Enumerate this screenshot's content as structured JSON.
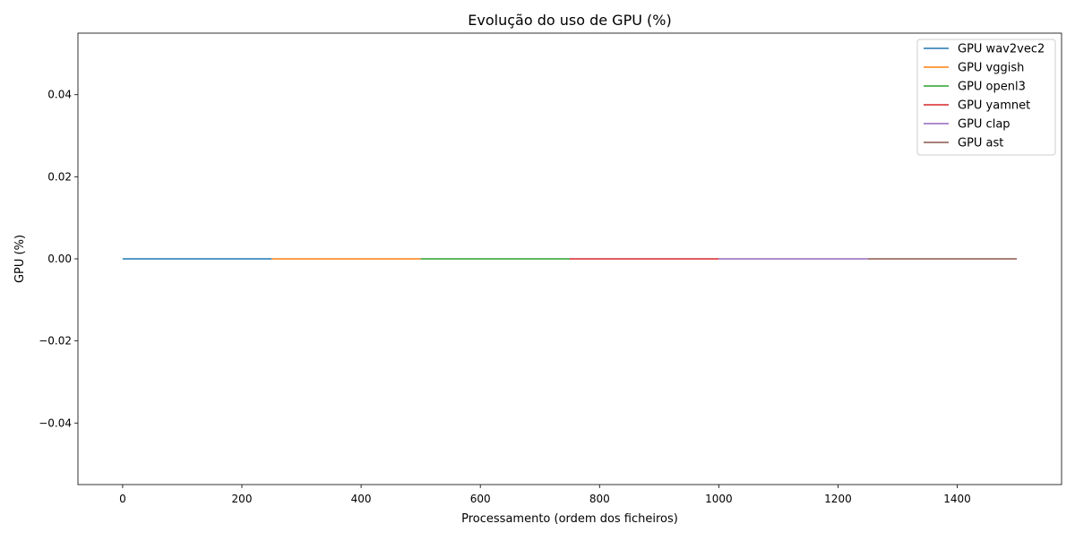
{
  "chart_data": {
    "type": "line",
    "title": "Evolução do uso de GPU (%)",
    "xlabel": "Processamento (ordem dos ficheiros)",
    "ylabel": "GPU (%)",
    "xlim": [
      -75,
      1575
    ],
    "ylim": [
      -0.055,
      0.055
    ],
    "x_ticks": [
      0,
      200,
      400,
      600,
      800,
      1000,
      1200,
      1400
    ],
    "x_tick_labels": [
      "0",
      "200",
      "400",
      "600",
      "800",
      "1000",
      "1200",
      "1400"
    ],
    "y_ticks": [
      -0.04,
      -0.02,
      0.0,
      0.02,
      0.04
    ],
    "y_tick_labels": [
      "−0.04",
      "−0.02",
      "0.00",
      "0.02",
      "0.04"
    ],
    "grid": false,
    "legend_position": "top-right",
    "series": [
      {
        "name": "GPU wav2vec2",
        "color": "#1f77b4",
        "x": [
          0,
          250
        ],
        "y": [
          0,
          0
        ]
      },
      {
        "name": "GPU vggish",
        "color": "#ff7f0e",
        "x": [
          250,
          500
        ],
        "y": [
          0,
          0
        ]
      },
      {
        "name": "GPU openl3",
        "color": "#2ca02c",
        "x": [
          500,
          750
        ],
        "y": [
          0,
          0
        ]
      },
      {
        "name": "GPU yamnet",
        "color": "#d62728",
        "x": [
          750,
          1000
        ],
        "y": [
          0,
          0
        ]
      },
      {
        "name": "GPU clap",
        "color": "#9467bd",
        "x": [
          1000,
          1250
        ],
        "y": [
          0,
          0
        ]
      },
      {
        "name": "GPU ast",
        "color": "#8c564b",
        "x": [
          1250,
          1500
        ],
        "y": [
          0,
          0
        ]
      }
    ]
  }
}
